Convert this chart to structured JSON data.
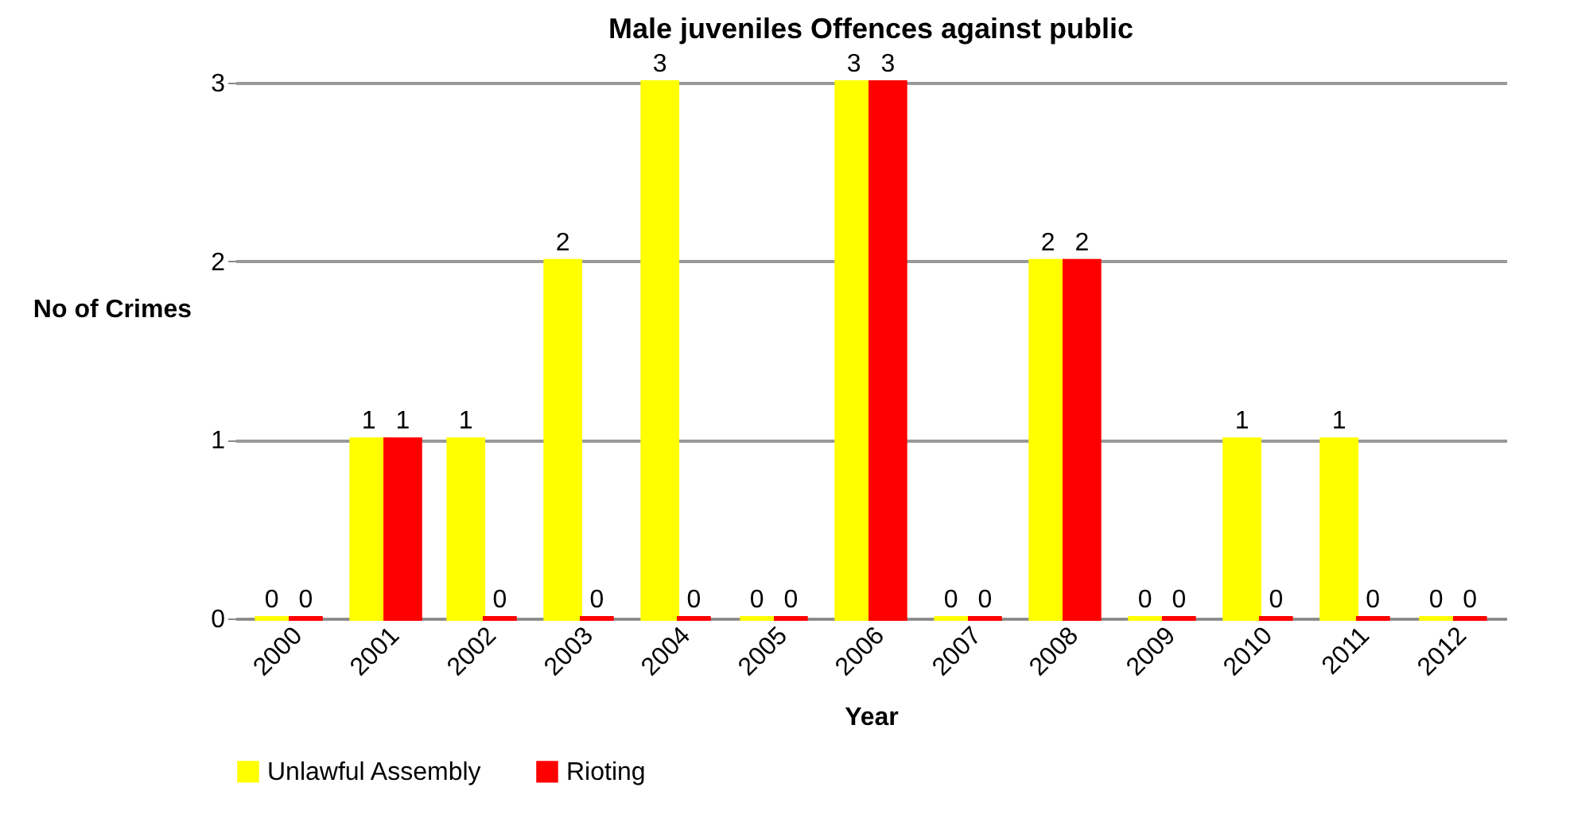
{
  "chart_data": {
    "type": "bar",
    "title": "Male juveniles  Offences against public",
    "xlabel": "Year",
    "ylabel": "No of Crimes",
    "categories": [
      "2000",
      "2001",
      "2002",
      "2003",
      "2004",
      "2005",
      "2006",
      "2007",
      "2008",
      "2009",
      "2010",
      "2011",
      "2012"
    ],
    "series": [
      {
        "name": "Unlawful Assembly",
        "color": "#ffff00",
        "values": [
          0,
          1,
          1,
          2,
          3,
          0,
          3,
          0,
          2,
          0,
          1,
          1,
          0
        ]
      },
      {
        "name": "Rioting",
        "color": "#ff0000",
        "values": [
          0,
          1,
          0,
          0,
          0,
          0,
          3,
          0,
          2,
          0,
          0,
          0,
          0
        ]
      }
    ],
    "ylim": [
      0,
      3
    ],
    "yticks": [
      0,
      1,
      2,
      3
    ],
    "grid": "y",
    "legend": "bottom",
    "data_labels": true
  }
}
